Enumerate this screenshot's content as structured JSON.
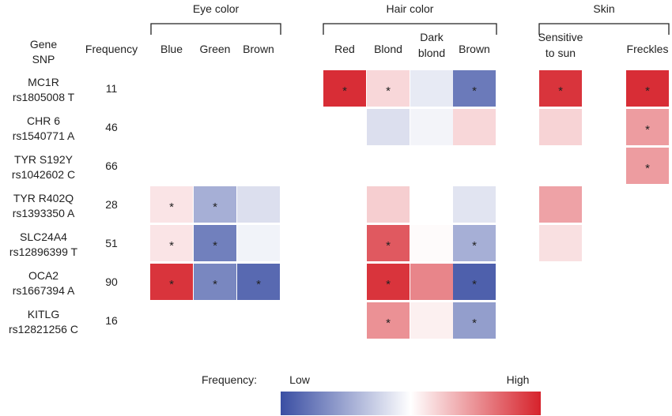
{
  "chart_data": {
    "type": "heatmap",
    "header": {
      "gene": "Gene",
      "snp": "SNP",
      "frequency": "Frequency"
    },
    "groups": [
      {
        "name": "Eye color",
        "columns": [
          "Blue",
          "Green",
          "Brown"
        ]
      },
      {
        "name": "Hair color",
        "columns": [
          "Red",
          "Blond",
          "Dark blond",
          "Brown"
        ]
      },
      {
        "name": "Skin",
        "columns": [
          "Sensitive to sun",
          "Freckles"
        ]
      }
    ],
    "columns": [
      {
        "id": "eye_blue",
        "label": [
          "Blue"
        ]
      },
      {
        "id": "eye_green",
        "label": [
          "Green"
        ]
      },
      {
        "id": "eye_brown",
        "label": [
          "Brown"
        ]
      },
      {
        "id": "hair_red",
        "label": [
          "Red"
        ]
      },
      {
        "id": "hair_blond",
        "label": [
          "Blond"
        ]
      },
      {
        "id": "hair_darkblond",
        "label": [
          "Dark",
          "blond"
        ]
      },
      {
        "id": "hair_brown",
        "label": [
          "Brown"
        ]
      },
      {
        "id": "skin_sensitive",
        "label": [
          "Sensitive",
          "to sun"
        ]
      },
      {
        "id": "skin_freckles",
        "label": [
          "Freckles"
        ]
      }
    ],
    "rows": [
      {
        "gene": "MC1R",
        "snp": "rs1805008 T",
        "frequency": 11,
        "cells": [
          null,
          null,
          null,
          [
            0.95,
            true
          ],
          [
            0.18,
            true
          ],
          [
            -0.12,
            false
          ],
          [
            -0.75,
            true
          ],
          [
            0.92,
            true
          ],
          [
            0.95,
            true
          ]
        ]
      },
      {
        "gene": "CHR 6",
        "snp": "rs1540771 A",
        "frequency": 46,
        "cells": [
          null,
          null,
          null,
          null,
          [
            -0.18,
            false
          ],
          [
            -0.06,
            false
          ],
          [
            0.18,
            false
          ],
          [
            0.2,
            false
          ],
          [
            0.45,
            true
          ]
        ]
      },
      {
        "gene": "TYR S192Y",
        "snp": "rs1042602 C",
        "frequency": 66,
        "cells": [
          null,
          null,
          null,
          null,
          null,
          null,
          null,
          null,
          [
            0.45,
            true
          ]
        ]
      },
      {
        "gene": "TYR R402Q",
        "snp": "rs1393350 A",
        "frequency": 28,
        "cells": [
          [
            0.12,
            true
          ],
          [
            -0.45,
            true
          ],
          [
            -0.18,
            false
          ],
          null,
          [
            0.22,
            false
          ],
          null,
          [
            -0.15,
            false
          ],
          [
            0.42,
            false
          ],
          null
        ]
      },
      {
        "gene": "SLC24A4",
        "snp": "rs12896399 T",
        "frequency": 51,
        "cells": [
          [
            0.12,
            true
          ],
          [
            -0.72,
            true
          ],
          [
            -0.07,
            false
          ],
          null,
          [
            0.75,
            true
          ],
          [
            0.02,
            false
          ],
          [
            -0.45,
            true
          ],
          [
            0.14,
            false
          ],
          null
        ]
      },
      {
        "gene": "OCA2",
        "snp": "rs1667394  A",
        "frequency": 90,
        "cells": [
          [
            0.92,
            true
          ],
          [
            -0.68,
            true
          ],
          [
            -0.85,
            true
          ],
          null,
          [
            0.92,
            true
          ],
          [
            0.55,
            false
          ],
          [
            -0.9,
            true
          ],
          null,
          null
        ]
      },
      {
        "gene": "KITLG",
        "snp": "rs12821256 C",
        "frequency": 16,
        "cells": [
          null,
          null,
          null,
          null,
          [
            0.5,
            true
          ],
          [
            0.07,
            false
          ],
          [
            -0.55,
            true
          ],
          null,
          null
        ]
      }
    ],
    "legend": {
      "label": "Frequency:",
      "low": "Low",
      "high": "High"
    },
    "colors": {
      "low": "#3a4ea3",
      "mid": "#ffffff",
      "high": "#d6222b"
    },
    "value_scale": "-1 (low) to 1 (high)",
    "significance_marker": "*"
  }
}
